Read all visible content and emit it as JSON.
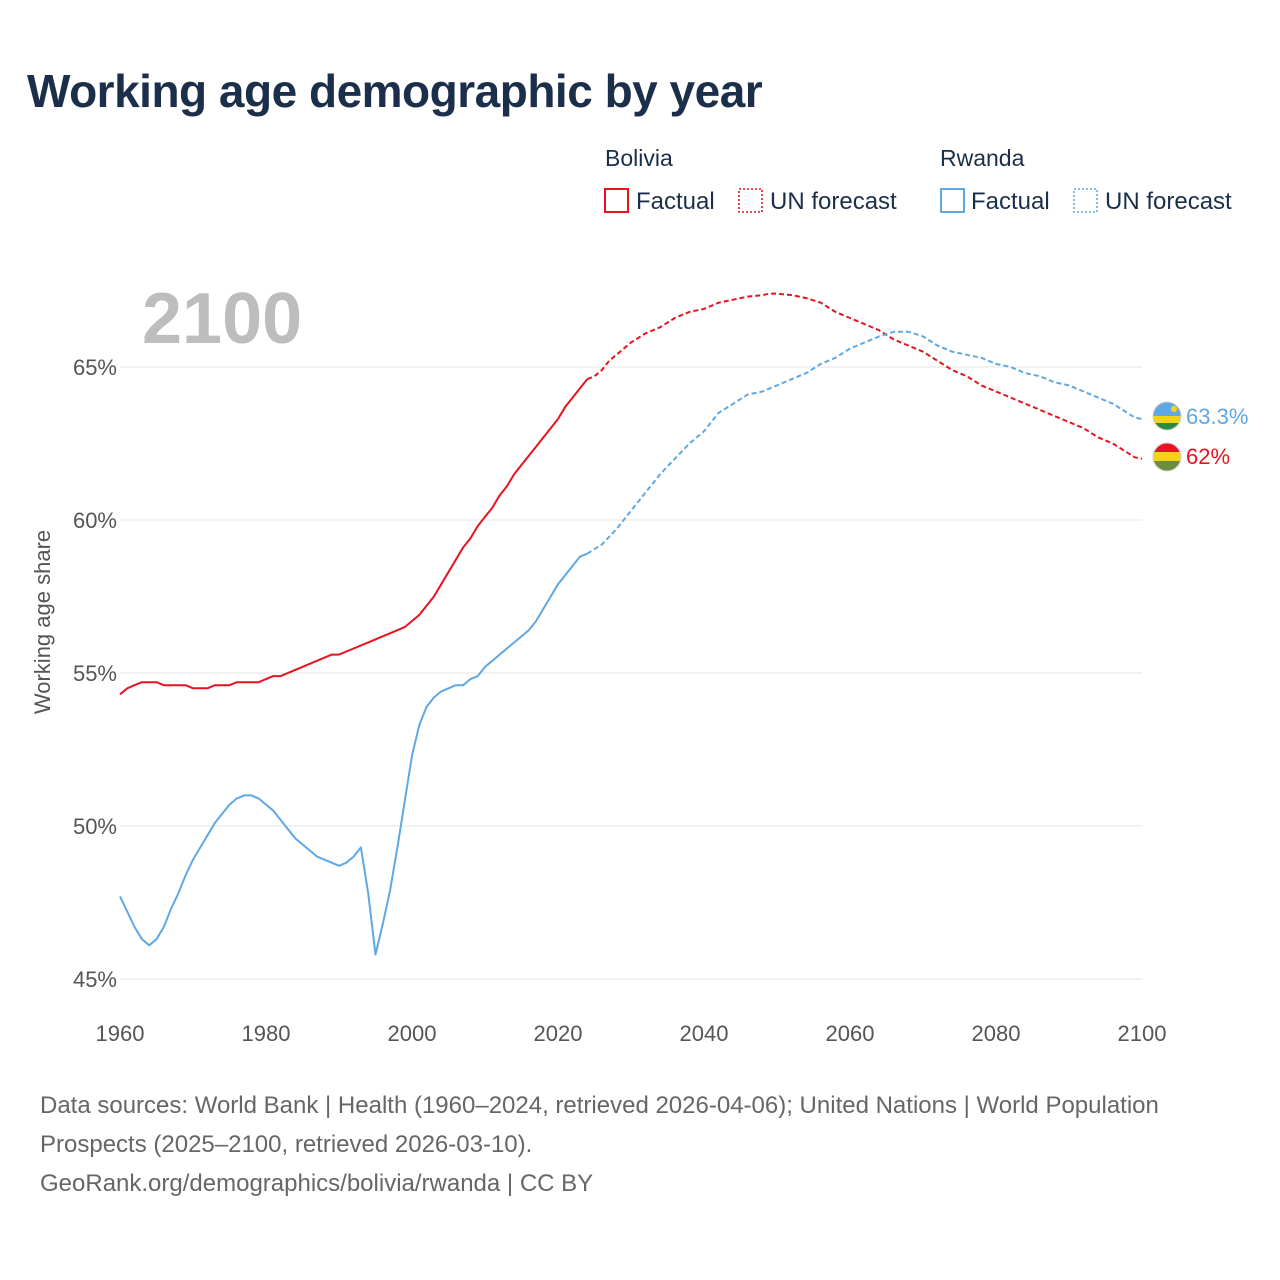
{
  "title": "Working age demographic by year",
  "legend": {
    "groups": [
      {
        "name": "Bolivia",
        "factual_label": "Factual",
        "forecast_label": "UN forecast",
        "color": "#e8131f"
      },
      {
        "name": "Rwanda",
        "factual_label": "Factual",
        "forecast_label": "UN forecast",
        "color": "#5fa8e4"
      }
    ]
  },
  "year_display": "2100",
  "footer": {
    "sources": "Data sources: World Bank | Health (1960–2024, retrieved 2026-04-06); United Nations | World Population Prospects (2025–2100, retrieved 2026-03-10).",
    "link": "GeoRank.org/demographics/bolivia/rwanda | CC BY"
  },
  "chart_data": {
    "type": "line",
    "title": "Working age demographic by year",
    "xlabel": "",
    "ylabel": "Working age share",
    "xlim": [
      1960,
      2100
    ],
    "ylim": [
      45,
      68
    ],
    "x_ticks": [
      1960,
      1980,
      2000,
      2020,
      2040,
      2060,
      2080,
      2100
    ],
    "y_ticks": [
      45,
      50,
      55,
      60,
      65
    ],
    "y_tick_labels": [
      "45%",
      "50%",
      "55%",
      "60%",
      "65%"
    ],
    "grid": true,
    "forecast_start": 2024,
    "series": [
      {
        "name": "Bolivia",
        "color": "#e8131f",
        "end_label": "62%",
        "flag": "bolivia-flag",
        "points": [
          [
            1960,
            54.3
          ],
          [
            1961,
            54.5
          ],
          [
            1962,
            54.6
          ],
          [
            1963,
            54.7
          ],
          [
            1964,
            54.7
          ],
          [
            1965,
            54.7
          ],
          [
            1966,
            54.6
          ],
          [
            1968,
            54.6
          ],
          [
            1969,
            54.6
          ],
          [
            1970,
            54.5
          ],
          [
            1972,
            54.5
          ],
          [
            1973,
            54.6
          ],
          [
            1975,
            54.6
          ],
          [
            1976,
            54.7
          ],
          [
            1979,
            54.7
          ],
          [
            1980,
            54.8
          ],
          [
            1981,
            54.9
          ],
          [
            1982,
            54.9
          ],
          [
            1984,
            55.1
          ],
          [
            1986,
            55.3
          ],
          [
            1988,
            55.5
          ],
          [
            1989,
            55.6
          ],
          [
            1990,
            55.6
          ],
          [
            1992,
            55.8
          ],
          [
            1994,
            56.0
          ],
          [
            1996,
            56.2
          ],
          [
            1998,
            56.4
          ],
          [
            1999,
            56.5
          ],
          [
            2000,
            56.7
          ],
          [
            2001,
            56.9
          ],
          [
            2002,
            57.2
          ],
          [
            2003,
            57.5
          ],
          [
            2004,
            57.9
          ],
          [
            2005,
            58.3
          ],
          [
            2006,
            58.7
          ],
          [
            2007,
            59.1
          ],
          [
            2008,
            59.4
          ],
          [
            2009,
            59.8
          ],
          [
            2010,
            60.1
          ],
          [
            2011,
            60.4
          ],
          [
            2012,
            60.8
          ],
          [
            2013,
            61.1
          ],
          [
            2014,
            61.5
          ],
          [
            2015,
            61.8
          ],
          [
            2016,
            62.1
          ],
          [
            2017,
            62.4
          ],
          [
            2018,
            62.7
          ],
          [
            2019,
            63.0
          ],
          [
            2020,
            63.3
          ],
          [
            2021,
            63.7
          ],
          [
            2022,
            64.0
          ],
          [
            2023,
            64.3
          ],
          [
            2024,
            64.6
          ],
          [
            2025,
            64.7
          ],
          [
            2026,
            64.9
          ],
          [
            2027,
            65.2
          ],
          [
            2028,
            65.4
          ],
          [
            2030,
            65.8
          ],
          [
            2032,
            66.1
          ],
          [
            2034,
            66.3
          ],
          [
            2036,
            66.6
          ],
          [
            2038,
            66.8
          ],
          [
            2040,
            66.9
          ],
          [
            2042,
            67.1
          ],
          [
            2044,
            67.2
          ],
          [
            2046,
            67.3
          ],
          [
            2048,
            67.35
          ],
          [
            2049,
            67.4
          ],
          [
            2050,
            67.4
          ],
          [
            2052,
            67.35
          ],
          [
            2054,
            67.25
          ],
          [
            2056,
            67.1
          ],
          [
            2058,
            66.8
          ],
          [
            2060,
            66.6
          ],
          [
            2062,
            66.4
          ],
          [
            2064,
            66.2
          ],
          [
            2066,
            65.9
          ],
          [
            2068,
            65.7
          ],
          [
            2070,
            65.5
          ],
          [
            2072,
            65.2
          ],
          [
            2074,
            64.9
          ],
          [
            2076,
            64.7
          ],
          [
            2078,
            64.4
          ],
          [
            2080,
            64.2
          ],
          [
            2082,
            64.0
          ],
          [
            2084,
            63.8
          ],
          [
            2086,
            63.6
          ],
          [
            2088,
            63.4
          ],
          [
            2090,
            63.2
          ],
          [
            2092,
            63.0
          ],
          [
            2094,
            62.7
          ],
          [
            2096,
            62.5
          ],
          [
            2098,
            62.2
          ],
          [
            2099,
            62.05
          ],
          [
            2100,
            62.0
          ]
        ]
      },
      {
        "name": "Rwanda",
        "color": "#5fa8e4",
        "end_label": "63.3%",
        "flag": "rwanda-flag",
        "points": [
          [
            1960,
            47.7
          ],
          [
            1961,
            47.2
          ],
          [
            1962,
            46.7
          ],
          [
            1963,
            46.3
          ],
          [
            1964,
            46.1
          ],
          [
            1965,
            46.3
          ],
          [
            1966,
            46.7
          ],
          [
            1967,
            47.3
          ],
          [
            1968,
            47.8
          ],
          [
            1969,
            48.4
          ],
          [
            1970,
            48.9
          ],
          [
            1971,
            49.3
          ],
          [
            1972,
            49.7
          ],
          [
            1973,
            50.1
          ],
          [
            1974,
            50.4
          ],
          [
            1975,
            50.7
          ],
          [
            1976,
            50.9
          ],
          [
            1977,
            51.0
          ],
          [
            1978,
            51.0
          ],
          [
            1979,
            50.9
          ],
          [
            1980,
            50.7
          ],
          [
            1981,
            50.5
          ],
          [
            1982,
            50.2
          ],
          [
            1983,
            49.9
          ],
          [
            1984,
            49.6
          ],
          [
            1985,
            49.4
          ],
          [
            1986,
            49.2
          ],
          [
            1987,
            49.0
          ],
          [
            1988,
            48.9
          ],
          [
            1989,
            48.8
          ],
          [
            1990,
            48.7
          ],
          [
            1991,
            48.8
          ],
          [
            1992,
            49.0
          ],
          [
            1993,
            49.3
          ],
          [
            1994,
            47.8
          ],
          [
            1995,
            45.8
          ],
          [
            1996,
            46.8
          ],
          [
            1997,
            47.9
          ],
          [
            1998,
            49.3
          ],
          [
            1999,
            50.8
          ],
          [
            2000,
            52.3
          ],
          [
            2001,
            53.3
          ],
          [
            2002,
            53.9
          ],
          [
            2003,
            54.2
          ],
          [
            2004,
            54.4
          ],
          [
            2005,
            54.5
          ],
          [
            2006,
            54.6
          ],
          [
            2007,
            54.6
          ],
          [
            2008,
            54.8
          ],
          [
            2009,
            54.9
          ],
          [
            2010,
            55.2
          ],
          [
            2011,
            55.4
          ],
          [
            2012,
            55.6
          ],
          [
            2013,
            55.8
          ],
          [
            2014,
            56.0
          ],
          [
            2015,
            56.2
          ],
          [
            2016,
            56.4
          ],
          [
            2017,
            56.7
          ],
          [
            2018,
            57.1
          ],
          [
            2019,
            57.5
          ],
          [
            2020,
            57.9
          ],
          [
            2021,
            58.2
          ],
          [
            2022,
            58.5
          ],
          [
            2023,
            58.8
          ],
          [
            2024,
            58.9
          ],
          [
            2026,
            59.2
          ],
          [
            2028,
            59.7
          ],
          [
            2030,
            60.3
          ],
          [
            2032,
            60.9
          ],
          [
            2034,
            61.5
          ],
          [
            2036,
            62.0
          ],
          [
            2038,
            62.5
          ],
          [
            2040,
            62.9
          ],
          [
            2042,
            63.5
          ],
          [
            2044,
            63.8
          ],
          [
            2046,
            64.1
          ],
          [
            2048,
            64.2
          ],
          [
            2050,
            64.4
          ],
          [
            2052,
            64.6
          ],
          [
            2054,
            64.8
          ],
          [
            2056,
            65.1
          ],
          [
            2058,
            65.3
          ],
          [
            2060,
            65.6
          ],
          [
            2062,
            65.8
          ],
          [
            2064,
            66.0
          ],
          [
            2066,
            66.15
          ],
          [
            2068,
            66.15
          ],
          [
            2070,
            66.0
          ],
          [
            2072,
            65.7
          ],
          [
            2074,
            65.5
          ],
          [
            2076,
            65.4
          ],
          [
            2078,
            65.3
          ],
          [
            2080,
            65.1
          ],
          [
            2082,
            65.0
          ],
          [
            2084,
            64.8
          ],
          [
            2086,
            64.7
          ],
          [
            2088,
            64.5
          ],
          [
            2090,
            64.4
          ],
          [
            2092,
            64.2
          ],
          [
            2094,
            64.0
          ],
          [
            2096,
            63.8
          ],
          [
            2098,
            63.5
          ],
          [
            2099,
            63.35
          ],
          [
            2100,
            63.3
          ]
        ]
      }
    ]
  }
}
